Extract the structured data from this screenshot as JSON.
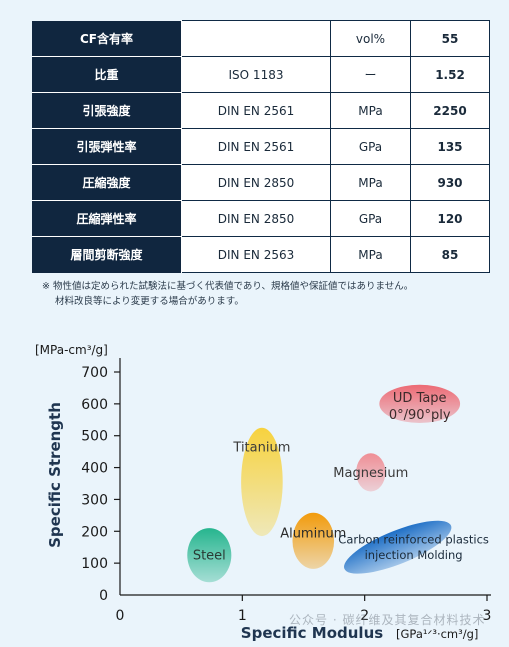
{
  "properties_table": {
    "rows": [
      {
        "property": "CF含有率",
        "standard": "",
        "unit": "vol%",
        "value": "55"
      },
      {
        "property": "比重",
        "standard": "ISO 1183",
        "unit": "ー",
        "value": "1.52"
      },
      {
        "property": "引張強度",
        "standard": "DIN EN 2561",
        "unit": "MPa",
        "value": "2250"
      },
      {
        "property": "引張弾性率",
        "standard": "DIN EN 2561",
        "unit": "GPa",
        "value": "135"
      },
      {
        "property": "圧縮強度",
        "standard": "DIN EN 2850",
        "unit": "MPa",
        "value": "930"
      },
      {
        "property": "圧縮弾性率",
        "standard": "DIN EN 2850",
        "unit": "GPa",
        "value": "120"
      },
      {
        "property": "層間剪断強度",
        "standard": "DIN EN 2563",
        "unit": "MPa",
        "value": "85"
      }
    ]
  },
  "note": {
    "line1": "※ 物性値は定められた試験法に基づく代表値であり、規格値や保証値ではありません。",
    "line2": "材料改良等により変更する場合があります。"
  },
  "watermark": "公众号 · 碳纤维及其复合材料技术",
  "chart_data": {
    "type": "scatter",
    "xlabel": "Specific Modulus",
    "xunit": "[GPa¹ᐟ³·cm³/g]",
    "ylabel": "Specific Strength",
    "yunit": "[MPa-cm³/g]",
    "xlim": [
      0,
      3
    ],
    "ylim": [
      0,
      700
    ],
    "xticks": [
      "0",
      "1",
      "2",
      "3"
    ],
    "yticks": [
      "0",
      "100",
      "200",
      "300",
      "400",
      "500",
      "600",
      "700"
    ],
    "grid": false,
    "regions": [
      {
        "label": [
          "UD Tape",
          "0°/90°ply"
        ],
        "x_center": 2.45,
        "y_center": 600,
        "x_halfwidth": 0.33,
        "y_halfwidth": 60,
        "rotation": 0,
        "color": "#ec6a74"
      },
      {
        "label": [
          "Titanium"
        ],
        "x_center": 1.16,
        "y_center": 355,
        "x_halfwidth": 0.17,
        "y_halfwidth": 170,
        "rotation": 0,
        "color": "#f7d23e"
      },
      {
        "label": [
          "Magnesium"
        ],
        "x_center": 2.05,
        "y_center": 385,
        "x_halfwidth": 0.12,
        "y_halfwidth": 60,
        "rotation": 0,
        "color": "#ef8e95"
      },
      {
        "label": [
          "Aluminum"
        ],
        "x_center": 1.58,
        "y_center": 170,
        "x_halfwidth": 0.17,
        "y_halfwidth": 88,
        "rotation": 0,
        "color": "#f29b0c"
      },
      {
        "label": [
          "Steel"
        ],
        "x_center": 0.73,
        "y_center": 125,
        "x_halfwidth": 0.18,
        "y_halfwidth": 85,
        "rotation": 0,
        "color": "#26b58e"
      },
      {
        "label": [
          "Carbon reinforced plastics",
          "injection Molding"
        ],
        "x_center": 2.27,
        "y_center": 150,
        "x_halfwidth": 0.47,
        "y_halfwidth": 52,
        "rotation": -22,
        "color": "#1e6fc6"
      }
    ]
  }
}
